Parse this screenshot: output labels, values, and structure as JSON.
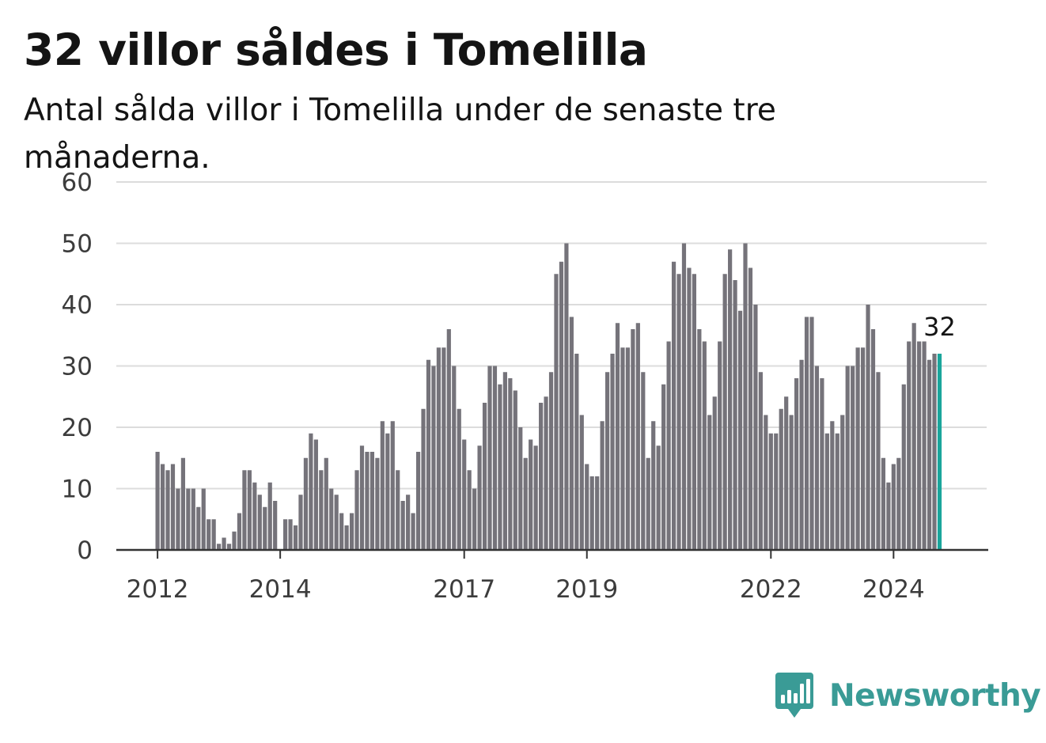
{
  "title": "32 villor såldes i Tomelilla",
  "subtitle": "Antal sålda villor i Tomelilla under de senaste tre månaderna.",
  "brand": {
    "name": "Newsworthy",
    "color": "#3a9b96",
    "icon": "bar-chart-speech-bubble-icon"
  },
  "chart_data": {
    "type": "bar",
    "title": "32 villor såldes i Tomelilla",
    "subtitle": "Antal sålda villor i Tomelilla under de senaste tre månaderna.",
    "xlabel": "",
    "ylabel": "",
    "ylim": [
      0,
      60
    ],
    "y_ticks": [
      0,
      10,
      20,
      30,
      40,
      50,
      60
    ],
    "grid": true,
    "bar_color": "#75737a",
    "highlight_color": "#1aa59b",
    "grid_color": "#dcdcdc",
    "start_month": "2012-01",
    "x_tick_labels": [
      "2012",
      "2014",
      "2017",
      "2019",
      "2022",
      "2024"
    ],
    "highlight_label": "32",
    "values": [
      16,
      14,
      13,
      14,
      10,
      15,
      10,
      10,
      7,
      10,
      5,
      5,
      1,
      2,
      1,
      3,
      6,
      13,
      13,
      11,
      9,
      7,
      11,
      8,
      0,
      5,
      5,
      4,
      9,
      15,
      19,
      18,
      13,
      15,
      10,
      9,
      6,
      4,
      6,
      13,
      17,
      16,
      16,
      15,
      21,
      19,
      21,
      13,
      8,
      9,
      6,
      16,
      23,
      31,
      30,
      33,
      33,
      36,
      30,
      23,
      18,
      13,
      10,
      17,
      24,
      30,
      30,
      27,
      29,
      28,
      26,
      20,
      15,
      18,
      17,
      24,
      25,
      29,
      45,
      47,
      50,
      38,
      32,
      22,
      14,
      12,
      12,
      21,
      29,
      32,
      37,
      33,
      33,
      36,
      37,
      29,
      15,
      21,
      17,
      27,
      34,
      47,
      45,
      50,
      46,
      45,
      36,
      34,
      22,
      25,
      34,
      45,
      49,
      44,
      39,
      50,
      46,
      40,
      29,
      22,
      19,
      19,
      23,
      25,
      22,
      28,
      31,
      38,
      38,
      30,
      28,
      19,
      21,
      19,
      22,
      30,
      30,
      33,
      33,
      40,
      36,
      29,
      15,
      11,
      14,
      15,
      27,
      34,
      37,
      34,
      34,
      31,
      32,
      32
    ]
  }
}
